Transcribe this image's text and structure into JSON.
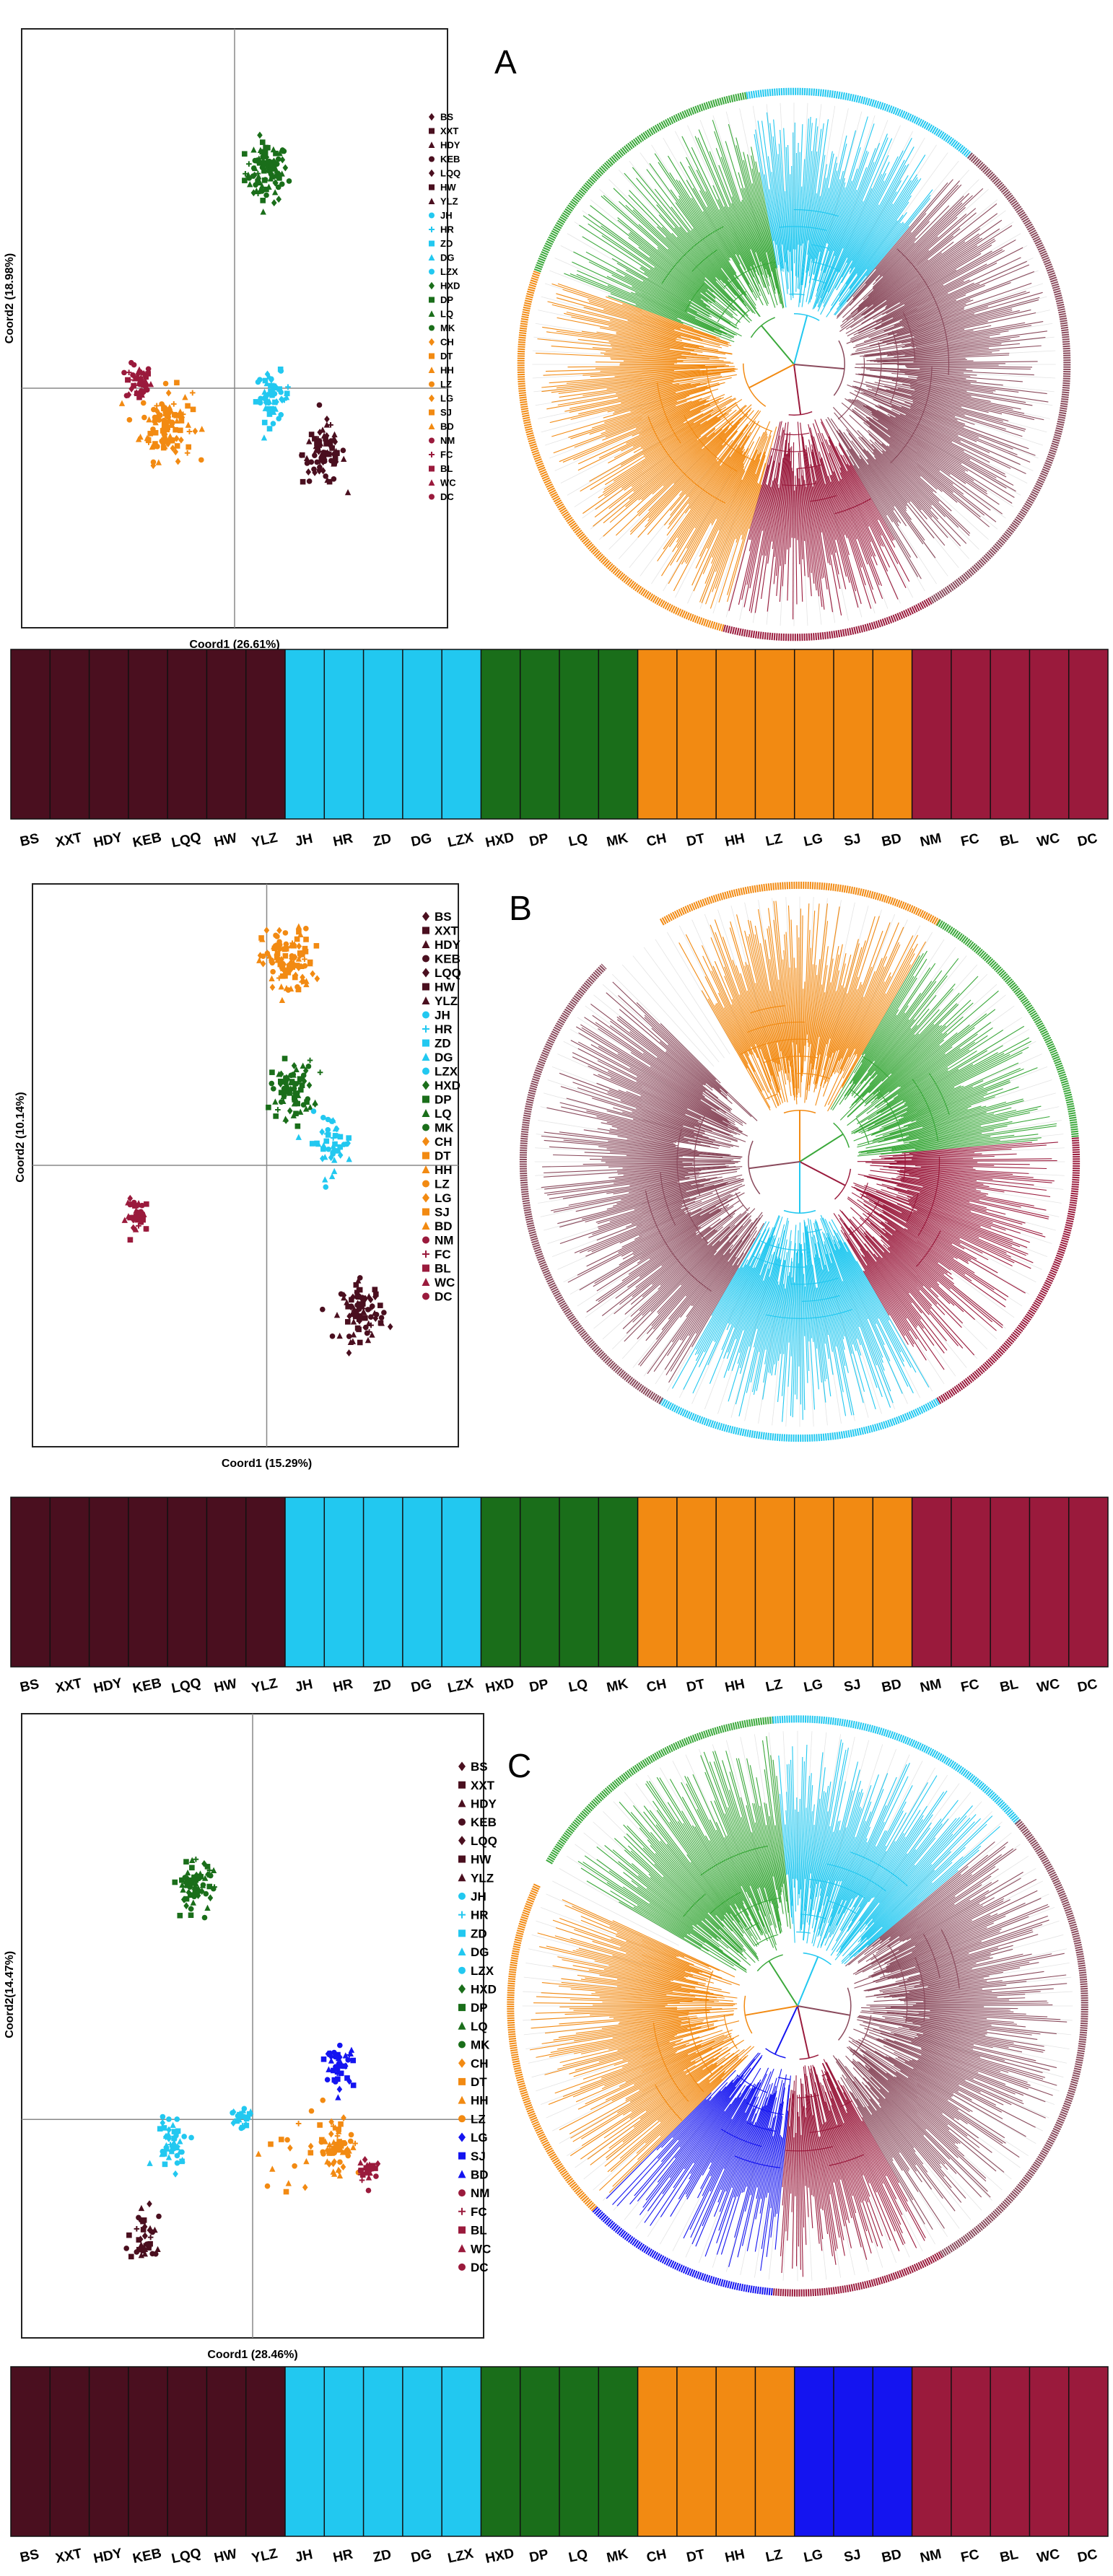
{
  "colors": {
    "dark": "#4a0f1f",
    "cyan": "#22c8f0",
    "green": "#1a6e1a",
    "lightgreen": "#3aa83a",
    "orange": "#f28a12",
    "blue": "#1414f0",
    "crimson": "#9a1a3c",
    "mauve": "#8a4a5c"
  },
  "populations": [
    "BS",
    "XXT",
    "HDY",
    "KEB",
    "LQQ",
    "HW",
    "YLZ",
    "JH",
    "HR",
    "ZD",
    "DG",
    "LZX",
    "HXD",
    "DP",
    "LQ",
    "MK",
    "CH",
    "DT",
    "HH",
    "LZ",
    "LG",
    "SJ",
    "BD",
    "NM",
    "FC",
    "BL",
    "WC",
    "DC"
  ],
  "panels": [
    {
      "letter": "A",
      "pca_xlabel": "Coord1 (26.61%)",
      "pca_ylabel": "Coord2 (18.98%)",
      "legend_colors": [
        "dark",
        "dark",
        "dark",
        "dark",
        "dark",
        "dark",
        "dark",
        "cyan",
        "cyan",
        "cyan",
        "cyan",
        "cyan",
        "green",
        "green",
        "green",
        "green",
        "orange",
        "orange",
        "orange",
        "orange",
        "orange",
        "orange",
        "orange",
        "crimson",
        "crimson",
        "crimson",
        "crimson",
        "crimson"
      ],
      "structure_groups": [
        "dark",
        "dark",
        "dark",
        "dark",
        "dark",
        "dark",
        "dark",
        "cyan",
        "cyan",
        "cyan",
        "cyan",
        "cyan",
        "green",
        "green",
        "green",
        "green",
        "orange",
        "orange",
        "orange",
        "orange",
        "orange",
        "orange",
        "orange",
        "crimson",
        "crimson",
        "crimson",
        "crimson",
        "crimson"
      ],
      "tree_sectors": [
        {
          "color": "lightgreen",
          "start": 290,
          "end": 350
        },
        {
          "color": "cyan",
          "start": 350,
          "end": 40
        },
        {
          "color": "mauve",
          "start": 40,
          "end": 150
        },
        {
          "color": "crimson",
          "start": 150,
          "end": 195
        },
        {
          "color": "orange",
          "start": 195,
          "end": 290
        }
      ],
      "chart_data": {
        "type": "scatter",
        "xlabel": "Coord1 (26.61%)",
        "ylabel": "Coord2 (18.98%)",
        "clusters": [
          {
            "group": "green",
            "cx": 0.15,
            "cy": 0.72,
            "spread": 0.05,
            "n": 90
          },
          {
            "group": "crimson",
            "cx": -0.45,
            "cy": 0.02,
            "spread": 0.03,
            "n": 45
          },
          {
            "group": "orange",
            "cx": -0.32,
            "cy": -0.12,
            "spread": 0.06,
            "n": 110
          },
          {
            "group": "cyan",
            "cx": 0.18,
            "cy": -0.03,
            "spread": 0.04,
            "n": 55
          },
          {
            "group": "dark",
            "cx": 0.42,
            "cy": -0.22,
            "spread": 0.05,
            "n": 80
          }
        ]
      }
    },
    {
      "letter": "B",
      "pca_xlabel": "Coord1 (15.29%)",
      "pca_ylabel": "Coord2 (10.14%)",
      "legend_colors": [
        "dark",
        "dark",
        "dark",
        "dark",
        "dark",
        "dark",
        "dark",
        "cyan",
        "cyan",
        "cyan",
        "cyan",
        "cyan",
        "green",
        "green",
        "green",
        "green",
        "orange",
        "orange",
        "orange",
        "orange",
        "orange",
        "orange",
        "orange",
        "crimson",
        "crimson",
        "crimson",
        "crimson",
        "crimson"
      ],
      "structure_groups": [
        "dark",
        "dark",
        "dark",
        "dark",
        "dark",
        "dark",
        "dark",
        "cyan",
        "cyan",
        "cyan",
        "cyan",
        "cyan",
        "green",
        "green",
        "green",
        "green",
        "orange",
        "orange",
        "orange",
        "orange",
        "orange",
        "orange",
        "orange",
        "crimson",
        "crimson",
        "crimson",
        "crimson",
        "crimson"
      ],
      "tree_sectors": [
        {
          "color": "orange",
          "start": 330,
          "end": 30
        },
        {
          "color": "lightgreen",
          "start": 30,
          "end": 85
        },
        {
          "color": "crimson",
          "start": 85,
          "end": 150
        },
        {
          "color": "cyan",
          "start": 150,
          "end": 210
        },
        {
          "color": "mauve",
          "start": 210,
          "end": 315
        }
      ],
      "chart_data": {
        "type": "scatter",
        "xlabel": "Coord1 (15.29%)",
        "ylabel": "Coord2 (10.14%)",
        "clusters": [
          {
            "group": "orange",
            "cx": 0.1,
            "cy": 0.72,
            "spread": 0.06,
            "n": 110
          },
          {
            "group": "green",
            "cx": 0.12,
            "cy": 0.27,
            "spread": 0.05,
            "n": 80
          },
          {
            "group": "cyan",
            "cx": 0.3,
            "cy": 0.08,
            "spread": 0.05,
            "n": 45
          },
          {
            "group": "crimson",
            "cx": -0.6,
            "cy": -0.18,
            "spread": 0.03,
            "n": 40
          },
          {
            "group": "dark",
            "cx": 0.45,
            "cy": -0.52,
            "spread": 0.05,
            "n": 90
          }
        ]
      }
    },
    {
      "letter": "C",
      "pca_xlabel": "Coord1 (28.46%)",
      "pca_ylabel": "Coord2(14.47%)",
      "legend_colors": [
        "dark",
        "dark",
        "dark",
        "dark",
        "dark",
        "dark",
        "dark",
        "cyan",
        "cyan",
        "cyan",
        "cyan",
        "cyan",
        "green",
        "green",
        "green",
        "green",
        "orange",
        "orange",
        "orange",
        "orange",
        "blue",
        "blue",
        "blue",
        "crimson",
        "crimson",
        "crimson",
        "crimson",
        "crimson"
      ],
      "structure_groups": [
        "dark",
        "dark",
        "dark",
        "dark",
        "dark",
        "dark",
        "dark",
        "cyan",
        "cyan",
        "cyan",
        "cyan",
        "cyan",
        "green",
        "green",
        "green",
        "green",
        "orange",
        "orange",
        "orange",
        "orange",
        "blue",
        "blue",
        "blue",
        "crimson",
        "crimson",
        "crimson",
        "crimson",
        "crimson"
      ],
      "tree_sectors": [
        {
          "color": "lightgreen",
          "start": 300,
          "end": 355
        },
        {
          "color": "cyan",
          "start": 355,
          "end": 50
        },
        {
          "color": "mauve",
          "start": 50,
          "end": 150
        },
        {
          "color": "crimson",
          "start": 150,
          "end": 185
        },
        {
          "color": "blue",
          "start": 185,
          "end": 225
        },
        {
          "color": "orange",
          "start": 225,
          "end": 295
        }
      ],
      "chart_data": {
        "type": "scatter",
        "xlabel": "Coord1 (28.46%)",
        "ylabel": "Coord2(14.47%)",
        "clusters": [
          {
            "group": "green",
            "cx": -0.25,
            "cy": 0.75,
            "spread": 0.04,
            "n": 70
          },
          {
            "group": "blue",
            "cx": 0.38,
            "cy": 0.17,
            "spread": 0.03,
            "n": 40
          },
          {
            "group": "cyan",
            "cx": -0.35,
            "cy": -0.07,
            "spread": 0.04,
            "n": 45
          },
          {
            "group": "cyan",
            "cx": -0.04,
            "cy": 0.0,
            "spread": 0.025,
            "n": 25
          },
          {
            "group": "orange",
            "cx": 0.36,
            "cy": -0.08,
            "spread": 0.05,
            "n": 60
          },
          {
            "group": "orange",
            "cx": 0.12,
            "cy": -0.12,
            "spread": 0.06,
            "n": 12
          },
          {
            "group": "crimson",
            "cx": 0.5,
            "cy": -0.16,
            "spread": 0.02,
            "n": 25
          },
          {
            "group": "dark",
            "cx": -0.46,
            "cy": -0.38,
            "spread": 0.04,
            "n": 40
          }
        ]
      }
    }
  ],
  "chart_data": [
    {
      "type": "scatter",
      "title": "A",
      "xlabel": "Coord1 (26.61%)",
      "ylabel": "Coord2 (18.98%)"
    },
    {
      "type": "scatter",
      "title": "B",
      "xlabel": "Coord1 (15.29%)",
      "ylabel": "Coord2 (10.14%)"
    },
    {
      "type": "scatter",
      "title": "C",
      "xlabel": "Coord1 (28.46%)",
      "ylabel": "Coord2(14.47%)"
    }
  ]
}
